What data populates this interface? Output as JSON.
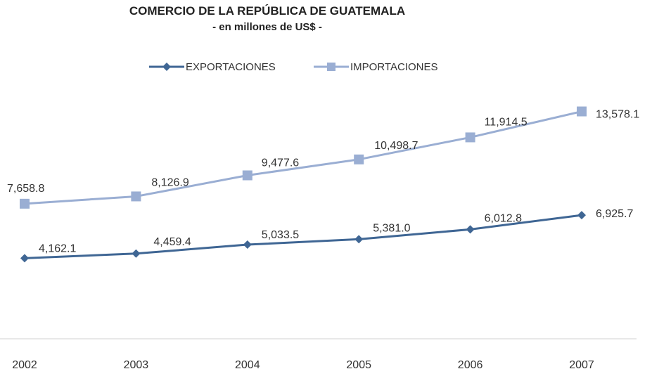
{
  "chart_data": {
    "type": "line",
    "title": "COMERCIO DE LA REPÚBLICA DE GUATEMALA",
    "subtitle": "- en millones de US$ -",
    "xlabel": "",
    "ylabel": "",
    "categories": [
      "2002",
      "2003",
      "2004",
      "2005",
      "2006",
      "2007"
    ],
    "series": [
      {
        "name": "EXPORTACIONES",
        "values": [
          4162.1,
          4459.4,
          5033.5,
          5381.0,
          6012.8,
          6925.7
        ],
        "labels": [
          "4,162.1",
          "4,459.4",
          "5,033.5",
          "5,381.0",
          "6,012.8",
          "6,925.7"
        ],
        "color": "#3f6694",
        "marker": "diamond"
      },
      {
        "name": "IMPORTACIONES",
        "values": [
          7658.8,
          8126.9,
          9477.6,
          10498.7,
          11914.5,
          13578.1
        ],
        "labels": [
          "7,658.8",
          "8,126.9",
          "9,477.6",
          "10,498.7",
          "11,914.5",
          "13,578.1"
        ],
        "color": "#9aaed3",
        "marker": "square"
      }
    ],
    "grid": false,
    "legend_position": "top"
  }
}
